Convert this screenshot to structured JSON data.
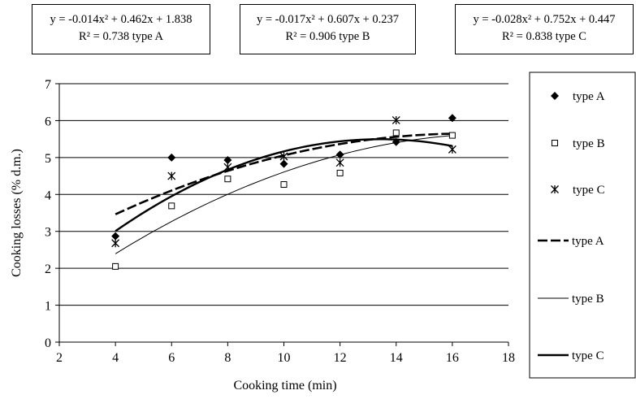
{
  "equations": [
    {
      "eq": "y = -0.014x² + 0.462x + 1.838",
      "r2": "R² = 0.738 type A"
    },
    {
      "eq": "y = -0.017x² + 0.607x + 0.237",
      "r2": "R² = 0.906 type B"
    },
    {
      "eq": "y = -0.028x² + 0.752x + 0.447",
      "r2": "R² = 0.838 type C"
    }
  ],
  "chart_data": {
    "type": "scatter",
    "xlabel": "Cooking time (min)",
    "ylabel": "Cooking losses (% d.m.)",
    "xlim": [
      2,
      18
    ],
    "ylim": [
      0,
      7
    ],
    "x_ticks": [
      2,
      4,
      6,
      8,
      10,
      12,
      14,
      16,
      18
    ],
    "y_ticks": [
      0,
      1,
      2,
      3,
      4,
      5,
      6,
      7
    ],
    "grid": "horizontal",
    "legend_position": "right",
    "series": [
      {
        "name": "type A",
        "marker": "diamond",
        "x": [
          4,
          6,
          8,
          10,
          12,
          14,
          16
        ],
        "y": [
          2.87,
          5.0,
          4.93,
          4.83,
          5.08,
          5.42,
          6.07
        ]
      },
      {
        "name": "type B",
        "marker": "square",
        "x": [
          4,
          6,
          8,
          10,
          12,
          14,
          16
        ],
        "y": [
          2.05,
          3.69,
          4.42,
          4.27,
          4.58,
          5.67,
          5.6
        ]
      },
      {
        "name": "type C",
        "marker": "asterisk",
        "x": [
          4,
          6,
          8,
          10,
          12,
          14,
          16
        ],
        "y": [
          2.68,
          4.5,
          4.74,
          5.03,
          4.86,
          6.01,
          5.22
        ]
      }
    ],
    "trendlines": [
      {
        "name": "type A",
        "style": "dashed",
        "a": -0.014,
        "b": 0.462,
        "c": 1.838,
        "x_range": [
          4,
          16
        ]
      },
      {
        "name": "type B",
        "style": "thin",
        "a": -0.017,
        "b": 0.607,
        "c": 0.237,
        "x_range": [
          4,
          16
        ]
      },
      {
        "name": "type C",
        "style": "thick",
        "a": -0.028,
        "b": 0.752,
        "c": 0.447,
        "x_range": [
          4,
          16
        ]
      }
    ]
  }
}
